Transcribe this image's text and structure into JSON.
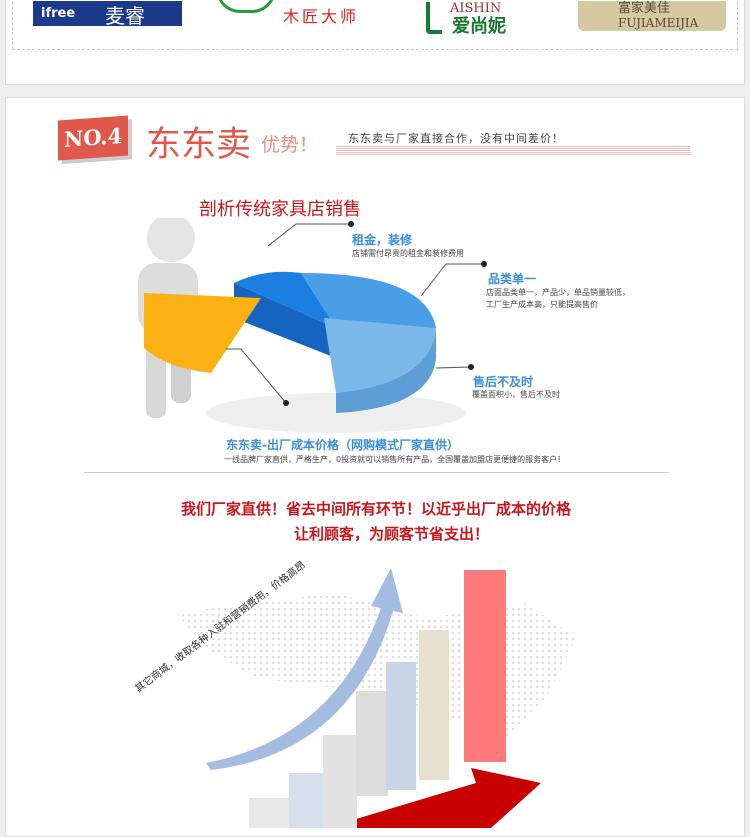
{
  "brands": [
    {
      "name": "麦睿",
      "latin": "ifree"
    },
    {
      "name": "木匠大师"
    },
    {
      "name": "爱尚妮",
      "latin": "AISHIN"
    },
    {
      "name": "富家美佳",
      "latin": "FUJIAMEIJIA"
    }
  ],
  "section": {
    "badge": "NO.4",
    "title": "东东卖",
    "title_suffix": "优势！",
    "tagline": "东东卖与厂家直接合作，没有中间差价！"
  },
  "analysis": {
    "heading": "剖析传统家具店销售",
    "callouts": [
      {
        "title": "租金，装修",
        "desc": [
          "店铺需付昂贵的租金和装修费用"
        ]
      },
      {
        "title": "品类单一",
        "desc": [
          "店面品类单一，产品少，单品销量较低，",
          "工厂生产成本高，只能提高售价"
        ]
      },
      {
        "title": "售后不及时",
        "desc": [
          "覆盖面积小，售后不及时"
        ]
      },
      {
        "title": "东东卖-出厂成本价格（网购模式厂家直供）",
        "desc": [
          "一线品牌厂家直供，严格生产，0投资就可以销售所有产品，全国覆盖加盟店更便捷的服务客户！"
        ]
      }
    ]
  },
  "slogan": [
    "我们厂家直供！省去中间所有环节！以近乎出厂成本的价格",
    "让利顾客，为顾客节省支出！"
  ],
  "arrow_text": "其它商城，收取各种入驻和营销费用，价格高昂",
  "colors": {
    "accent": "#d9534a",
    "blue": "#3b8fd9",
    "red": "#c8161d"
  }
}
